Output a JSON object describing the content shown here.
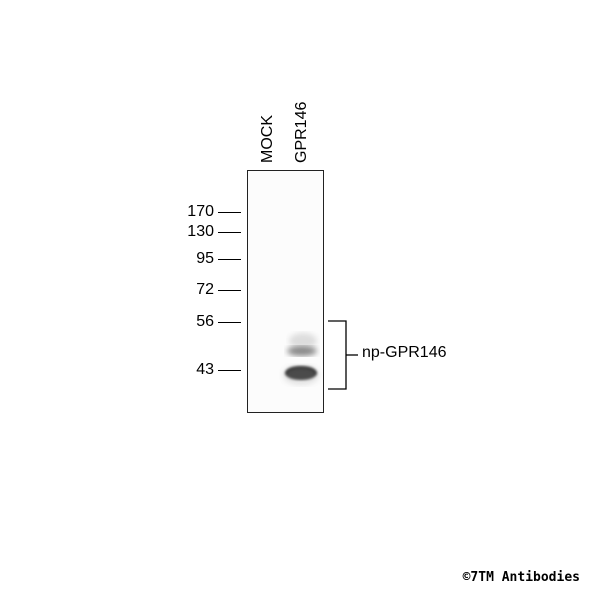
{
  "lanes": [
    {
      "label": "MOCK"
    },
    {
      "label": "GPR146"
    }
  ],
  "markers": [
    {
      "label": "170"
    },
    {
      "label": "130"
    },
    {
      "label": "95"
    },
    {
      "label": "72"
    },
    {
      "label": "56"
    },
    {
      "label": "43"
    }
  ],
  "band_annotation": "np-GPR146",
  "copyright": "©7TM Antibodies"
}
